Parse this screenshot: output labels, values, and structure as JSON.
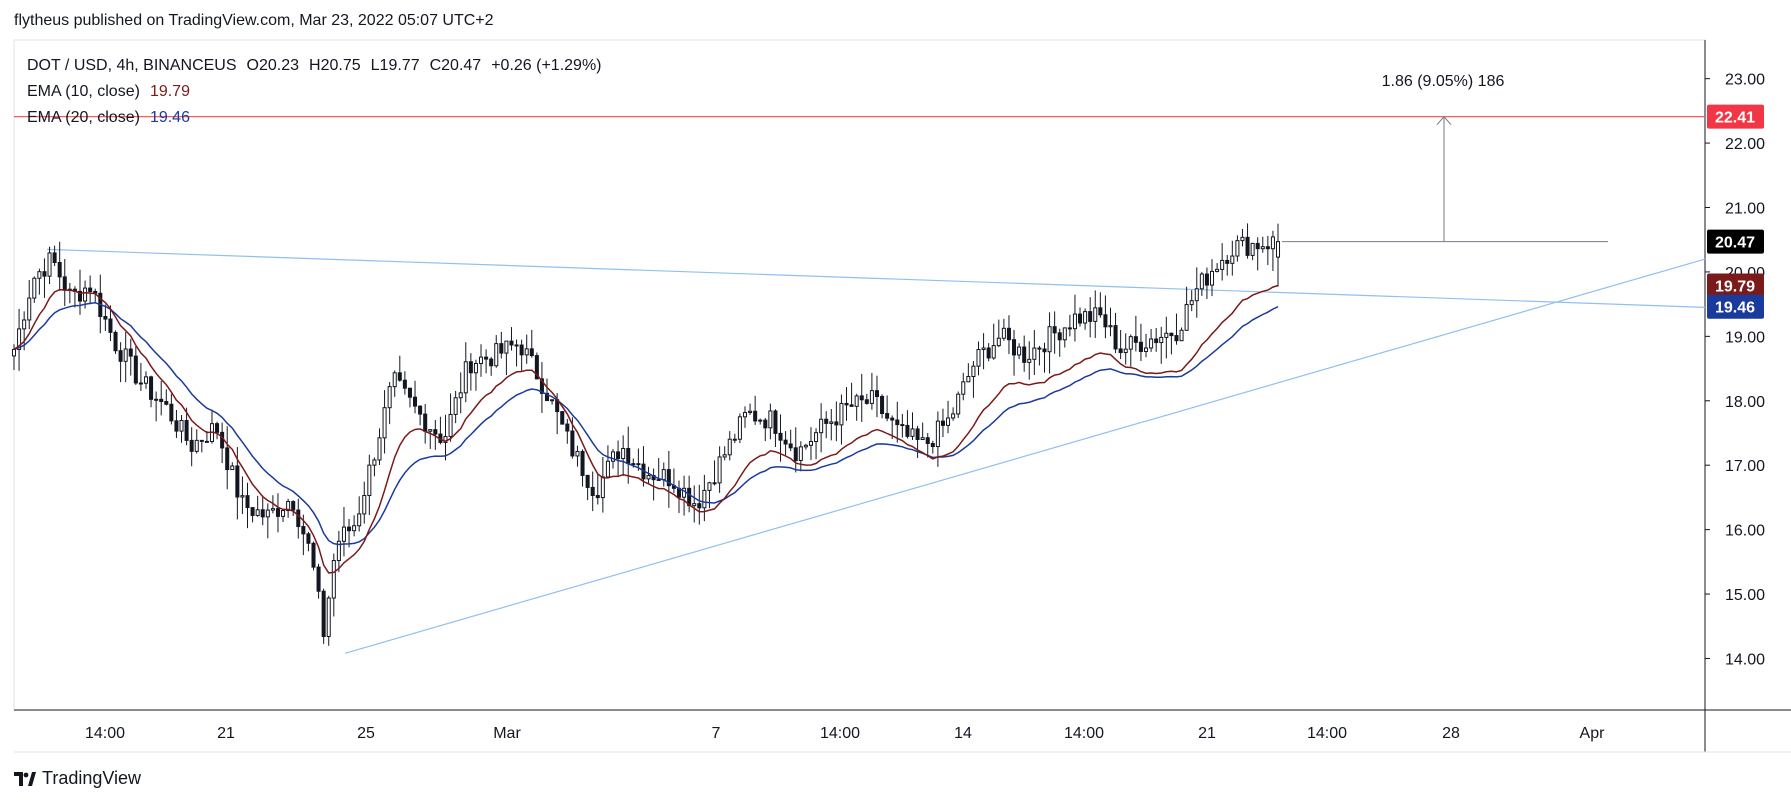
{
  "publish_line": "flytheus published on TradingView.com, Mar 23, 2022 05:07 UTC+2",
  "brand": {
    "name": "TradingView",
    "logo_icon": "tradingview-logo-icon"
  },
  "legend": {
    "symbol": "DOT / USD, 4h, BINANCEUS",
    "o_label": "O",
    "o_value": "20.23",
    "h_label": "H",
    "h_value": "20.75",
    "l_label": "L",
    "l_value": "19.77",
    "c_label": "C",
    "c_value": "20.47",
    "change": "+0.26 (+1.29%)",
    "ema10_label": "EMA (10, close)",
    "ema10_value": "19.79",
    "ema20_label": "EMA (20, close)",
    "ema20_value": "19.46"
  },
  "measure_label": "1.86 (9.05%) 186",
  "colors": {
    "up": "#131722",
    "down": "#131722",
    "ema10": "#7b1a1a",
    "ema20": "#1a3a9c",
    "trend": "#90c0f0",
    "resistance": "#f04848",
    "label_close": "#000000",
    "label_ema10": "#7b1a1a",
    "label_ema20": "#1a3a9c",
    "label_res": "#f23645"
  },
  "chart_data": {
    "type": "candlestick",
    "ylim": [
      13.2,
      23.6
    ],
    "y_ticks": [
      "14.00",
      "15.00",
      "16.00",
      "17.00",
      "18.00",
      "19.00",
      "20.00",
      "21.00",
      "22.00",
      "23.00"
    ],
    "x_ticks": [
      "14:00",
      "21",
      "25",
      "Mar",
      "7",
      "14:00",
      "14",
      "14:00",
      "21",
      "14:00",
      "28",
      "Apr"
    ],
    "price_labels": {
      "resistance": "22.41",
      "close": "20.47",
      "ema10": "19.79",
      "ema20": "19.46"
    },
    "resistance_level": 22.41,
    "trendlines": [
      {
        "name": "upper",
        "start": [
          0.018,
          20.35
        ],
        "end": [
          1.0,
          19.45
        ]
      },
      {
        "name": "lower",
        "start": [
          0.195,
          14.08
        ],
        "end": [
          1.0,
          20.2
        ]
      }
    ],
    "close_path_keyframes": [
      [
        0.0,
        18.8
      ],
      [
        0.015,
        19.9
      ],
      [
        0.03,
        20.2
      ],
      [
        0.045,
        19.6
      ],
      [
        0.06,
        19.8
      ],
      [
        0.08,
        18.9
      ],
      [
        0.1,
        18.3
      ],
      [
        0.12,
        17.9
      ],
      [
        0.14,
        17.3
      ],
      [
        0.16,
        17.6
      ],
      [
        0.18,
        16.4
      ],
      [
        0.2,
        16.2
      ],
      [
        0.22,
        16.5
      ],
      [
        0.235,
        15.6
      ],
      [
        0.245,
        14.4
      ],
      [
        0.255,
        15.8
      ],
      [
        0.27,
        16.1
      ],
      [
        0.285,
        17.2
      ],
      [
        0.3,
        18.3
      ],
      [
        0.32,
        17.8
      ],
      [
        0.34,
        17.4
      ],
      [
        0.36,
        18.6
      ],
      [
        0.38,
        18.7
      ],
      [
        0.4,
        18.9
      ],
      [
        0.42,
        18.2
      ],
      [
        0.44,
        17.3
      ],
      [
        0.46,
        16.6
      ],
      [
        0.48,
        17.3
      ],
      [
        0.5,
        16.9
      ],
      [
        0.52,
        16.8
      ],
      [
        0.54,
        16.4
      ],
      [
        0.56,
        17.1
      ],
      [
        0.58,
        17.8
      ],
      [
        0.6,
        17.7
      ],
      [
        0.62,
        17.2
      ],
      [
        0.64,
        17.6
      ],
      [
        0.66,
        17.9
      ],
      [
        0.68,
        18.0
      ],
      [
        0.7,
        17.5
      ],
      [
        0.72,
        17.3
      ],
      [
        0.74,
        17.7
      ],
      [
        0.76,
        18.6
      ],
      [
        0.78,
        19.0
      ],
      [
        0.8,
        18.7
      ],
      [
        0.82,
        19.0
      ],
      [
        0.84,
        19.3
      ],
      [
        0.86,
        19.3
      ],
      [
        0.875,
        18.8
      ],
      [
        0.89,
        18.9
      ],
      [
        0.905,
        19.0
      ],
      [
        0.92,
        19.1
      ],
      [
        0.935,
        19.7
      ],
      [
        0.95,
        20.1
      ],
      [
        0.965,
        20.4
      ],
      [
        1.0,
        20.47
      ]
    ],
    "last_candle": {
      "open": 20.23,
      "high": 20.75,
      "low": 19.77,
      "close": 20.47
    },
    "ema10_last": 19.79,
    "ema20_last": 19.46
  }
}
